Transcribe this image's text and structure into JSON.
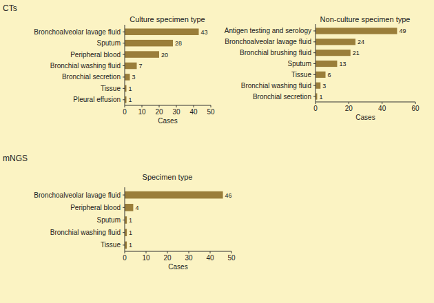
{
  "chart_data": [
    {
      "type": "bar",
      "orientation": "horizontal",
      "title": "Culture specimen type",
      "annotations": [
        "CTs"
      ],
      "categories": [
        "Bronchoalveolar lavage fluid",
        "Sputum",
        "Peripheral blood",
        "Bronchial washing fluid",
        "Bronchial secretion",
        "Tissue",
        "Pleural effusion"
      ],
      "values": [
        43,
        28,
        20,
        7,
        3,
        1,
        1
      ],
      "color": "#9a7e3a",
      "x_label": "Cases",
      "xlim": [
        0,
        50
      ],
      "xticks": [
        0,
        10,
        20,
        30,
        40,
        50
      ],
      "data_labels": true,
      "grid": false
    },
    {
      "type": "bar",
      "orientation": "horizontal",
      "title": "Non-culture specimen type",
      "categories": [
        "Antigen testing and serology",
        "Bronchoalveolar lavage fluid",
        "Bronchial brushing fluid",
        "Sputum",
        "Tissue",
        "Bronchial washing fluid",
        "Bronchial secretion"
      ],
      "values": [
        49,
        24,
        21,
        13,
        6,
        3,
        1
      ],
      "color": "#9a7e3a",
      "x_label": "Cases",
      "xlim": [
        0,
        60
      ],
      "xticks": [
        0,
        20,
        40,
        60
      ],
      "data_labels": true,
      "grid": false
    },
    {
      "type": "bar",
      "orientation": "horizontal",
      "title": "Specimen type",
      "annotations": [
        "mNGS"
      ],
      "categories": [
        "Bronchoalveolar lavage fluid",
        "Peripheral blood",
        "Sputum",
        "Bronchial washing fluid",
        "Tissue"
      ],
      "values": [
        46,
        4,
        1,
        1,
        1
      ],
      "color": "#9a7e3a",
      "x_label": "Cases",
      "xlim": [
        0,
        50
      ],
      "xticks": [
        0,
        10,
        20,
        30,
        40,
        50
      ],
      "data_labels": true,
      "grid": false
    }
  ]
}
